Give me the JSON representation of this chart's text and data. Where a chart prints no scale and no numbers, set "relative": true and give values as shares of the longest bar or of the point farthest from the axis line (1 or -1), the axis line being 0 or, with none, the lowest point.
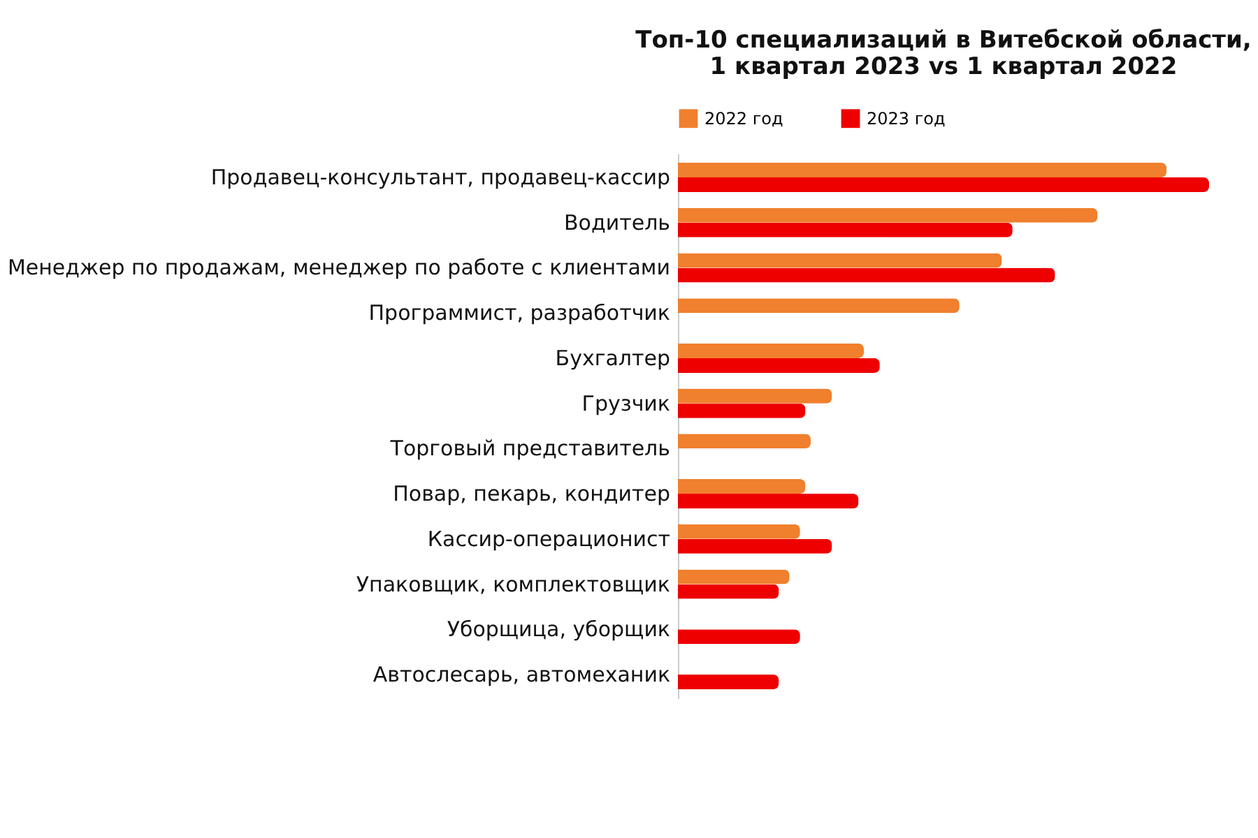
{
  "chart_data": {
    "type": "bar",
    "orientation": "horizontal",
    "relative": true,
    "legend": "top",
    "title": [
      "Топ-10 специализаций в Витебской области,",
      "1 квартал 2023 vs 1 квартал 2022"
    ],
    "categories": [
      "Продавец-консультант, продавец-кассир",
      "Водитель",
      "Менеджер по продажам, менеджер по работе с клиентами",
      "Программист, разработчик",
      "Бухгалтер",
      "Грузчик",
      "Торговый представитель",
      "Повар, пекарь, кондитер",
      "Кассир-операционист",
      "Упаковщик, комплектовщик",
      "Уборщица, уборщик",
      "Автослесарь, автомеханик"
    ],
    "series": [
      {
        "name": "2022 год",
        "color": "#f07f2e",
        "values": [
          0.92,
          0.79,
          0.61,
          0.53,
          0.35,
          0.29,
          0.25,
          0.24,
          0.23,
          0.21,
          null,
          null
        ]
      },
      {
        "name": "2023 год",
        "color": "#ee0000",
        "values": [
          1,
          0.63,
          0.71,
          null,
          0.38,
          0.24,
          null,
          0.34,
          0.29,
          0.19,
          0.23,
          0.19
        ]
      }
    ]
  }
}
